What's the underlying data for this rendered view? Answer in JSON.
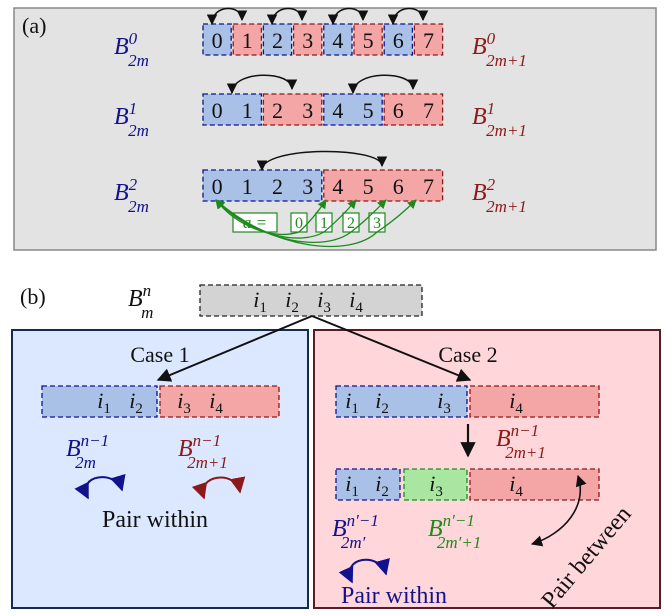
{
  "panel_a": {
    "tag": "(a)",
    "rows": [
      {
        "left": {
          "base": "B",
          "sup": "0",
          "sub": "2m"
        },
        "right": {
          "base": "B",
          "sup": "0",
          "sub": "2m+1"
        },
        "cells": [
          "0",
          "1",
          "2",
          "3",
          "4",
          "5",
          "6",
          "7"
        ]
      },
      {
        "left": {
          "base": "B",
          "sup": "1",
          "sub": "2m"
        },
        "right": {
          "base": "B",
          "sup": "1",
          "sub": "2m+1"
        },
        "cells": [
          "0",
          "1",
          "2",
          "3",
          "4",
          "5",
          "6",
          "7"
        ]
      },
      {
        "left": {
          "base": "B",
          "sup": "2",
          "sub": "2m"
        },
        "right": {
          "base": "B",
          "sup": "2",
          "sub": "2m+1"
        },
        "cells": [
          "0",
          "1",
          "2",
          "3",
          "4",
          "5",
          "6",
          "7"
        ]
      }
    ],
    "a_label": "a =",
    "a_values": [
      "0",
      "1",
      "2",
      "3"
    ]
  },
  "panel_b": {
    "tag": "(b)",
    "top": {
      "base": "B",
      "sup": "n",
      "sub": "m"
    },
    "top_cells": [
      "i1",
      "i2",
      "i3",
      "i4"
    ],
    "case1": {
      "title": "Case 1",
      "blue_cells": [
        "i1",
        "i2"
      ],
      "red_cells": [
        "i3",
        "i4"
      ],
      "left": {
        "base": "B",
        "sup": "n−1",
        "sub": "2m"
      },
      "right": {
        "base": "B",
        "sup": "n−1",
        "sub": "2m+1"
      },
      "pair_label": "Pair within"
    },
    "case2": {
      "title": "Case 2",
      "row1_blue": [
        "i1",
        "i2",
        "i3"
      ],
      "row1_red": [
        "i4"
      ],
      "right": {
        "base": "B",
        "sup": "n−1",
        "sub": "2m+1"
      },
      "row2_blue": [
        "i1",
        "i2"
      ],
      "row2_green": [
        "i3"
      ],
      "row2_red": [
        "i4"
      ],
      "left2": {
        "base": "B",
        "sup": "n′−1",
        "sub": "2m′"
      },
      "green2": {
        "base": "B",
        "sup": "n′−1",
        "sub": "2m′+1"
      },
      "pair_within": "Pair within",
      "pair_between": "Pair between"
    }
  },
  "colors": {
    "blue_fill": "#a9c1e6",
    "red_fill": "#f4a6a6",
    "green_fill": "#a8e6a2",
    "gray_fill": "#d3d3d3",
    "panel_a_bg": "#e3e3e3",
    "case1_bg": "#dbe8ff",
    "case2_bg": "#ffd6d9",
    "navy": "#12128c",
    "maroon": "#8b1a1a",
    "green_text": "#1e8a1e"
  }
}
